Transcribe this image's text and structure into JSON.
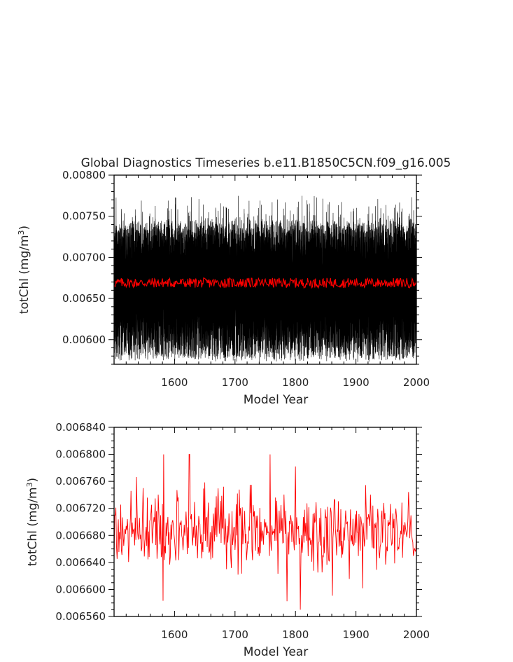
{
  "title": "Global Diagnostics Timeseries b.e11.B1850C5CN.f09_g16.005",
  "colors": {
    "raw": "#000000",
    "annual": "#ff0000",
    "axis": "#000000"
  },
  "chart_data": [
    {
      "type": "line",
      "title": "Global Diagnostics Timeseries b.e11.B1850C5CN.f09_g16.005",
      "xlabel": "Model Year",
      "ylabel_main": "totChl (mg/m",
      "ylabel_sup": "3",
      "ylabel_tail": ")",
      "xlim": [
        1500,
        2000
      ],
      "ylim": [
        0.0057,
        0.008
      ],
      "xticks": [
        1600,
        1700,
        1800,
        1900,
        2000
      ],
      "xtick_labels": [
        "1600",
        "1700",
        "1800",
        "1900",
        "2000"
      ],
      "yticks": [
        0.006,
        0.0065,
        0.007,
        0.0075,
        0.008
      ],
      "ytick_labels": [
        "0.00600",
        "0.00650",
        "0.00700",
        "0.00750",
        "0.00800"
      ],
      "series": [
        {
          "kind": "monthly",
          "color": "#000000",
          "band_low": [
            0.00582,
            0.0059
          ],
          "band_high": [
            0.00735,
            0.0078
          ],
          "mean": 0.0067
        },
        {
          "kind": "annual",
          "color": "#ff0000",
          "mean": 0.00669,
          "spread": 0.0001
        }
      ]
    },
    {
      "type": "line",
      "xlabel": "Model Year",
      "ylabel_main": "totChl (mg/m",
      "ylabel_sup": "3",
      "ylabel_tail": ")",
      "xlim": [
        1500,
        2000
      ],
      "ylim": [
        0.00656,
        0.00684
      ],
      "xticks": [
        1600,
        1700,
        1800,
        1900,
        2000
      ],
      "xtick_labels": [
        "1600",
        "1700",
        "1800",
        "1900",
        "2000"
      ],
      "yticks": [
        0.00656,
        0.0066,
        0.00664,
        0.00668,
        0.00672,
        0.00676,
        0.0068,
        0.00684
      ],
      "ytick_labels": [
        "0.006560",
        "0.006600",
        "0.006640",
        "0.006680",
        "0.006720",
        "0.006760",
        "0.006800",
        "0.006840"
      ],
      "series": [
        {
          "kind": "annual",
          "color": "#ff0000",
          "mean": 0.00669,
          "min": 0.00657,
          "max": 0.0068
        }
      ]
    }
  ]
}
